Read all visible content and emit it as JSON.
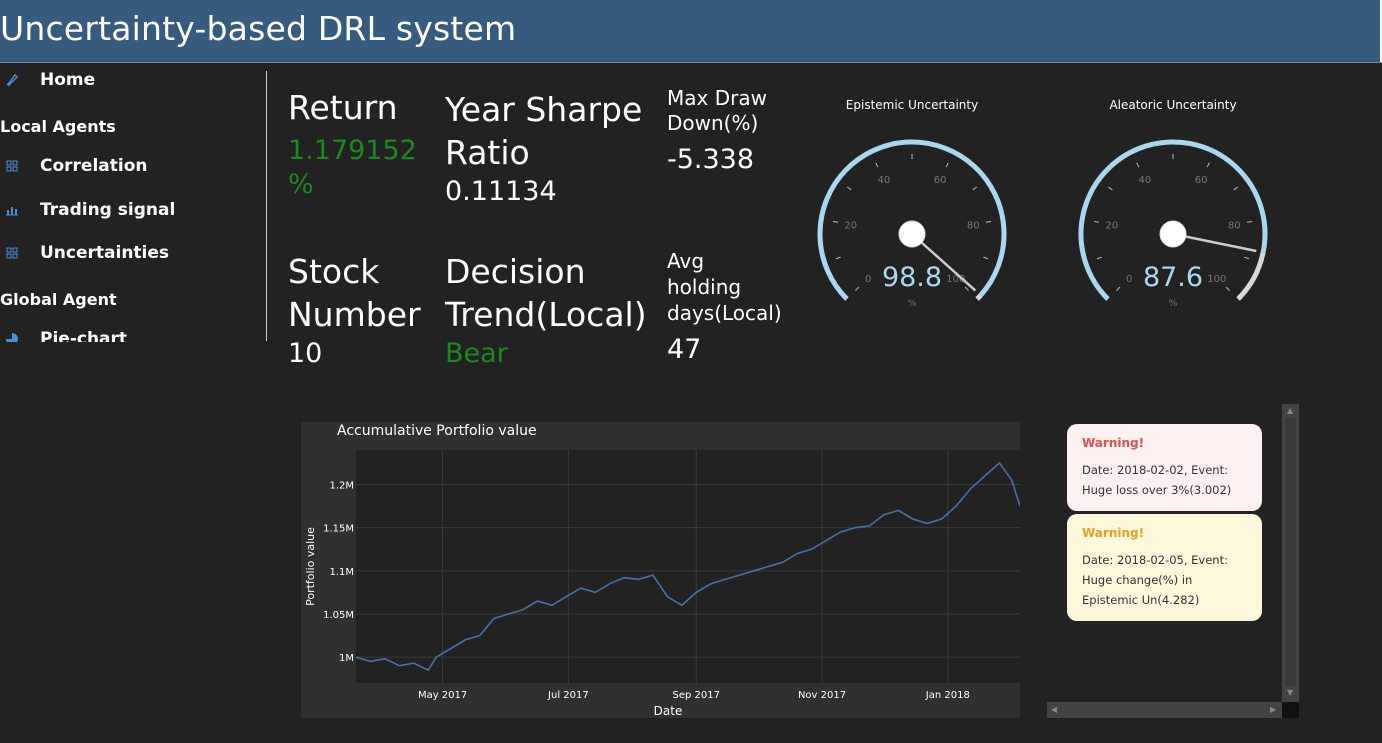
{
  "app": {
    "title": "Uncertainty-based DRL system"
  },
  "sidebar": {
    "home": "Home",
    "local_section": "Local Agents",
    "local_items": [
      "Correlation",
      "Trading signal",
      "Uncertainties"
    ],
    "global_section": "Global Agent",
    "global_items": [
      "Pie-chart"
    ]
  },
  "metrics": {
    "return": {
      "label": "Return",
      "value": "1.179152 %"
    },
    "sharpe": {
      "label": "Year Sharpe Ratio",
      "value": "0.11134"
    },
    "drawdown": {
      "label": "Max Draw Down(%)",
      "value": "-5.338"
    },
    "stock_number": {
      "label": "Stock Number",
      "value": "10"
    },
    "decision": {
      "label": "Decision Trend(Local)",
      "value": "Bear"
    },
    "holding": {
      "label": "Avg holding days(Local)",
      "value": "47"
    }
  },
  "gauges": [
    {
      "title": "Epistemic Uncertainty",
      "value": 98.8,
      "display": "98.8",
      "unit": "%",
      "min": 0,
      "max": 100,
      "ticks": [
        "0",
        "20",
        "40",
        "60",
        "80",
        "100"
      ]
    },
    {
      "title": "Aleatoric Uncertainty",
      "value": 87.6,
      "display": "87.6",
      "unit": "%",
      "min": 0,
      "max": 100,
      "ticks": [
        "0",
        "20",
        "40",
        "60",
        "80",
        "100"
      ]
    }
  ],
  "colors": {
    "header": "#375a7f",
    "green": "#1a8a1a",
    "gauge_arc": "#a8d8f0",
    "gauge_rest": "#d8d8d8",
    "line": "#4a6fa8",
    "warn_red": "#e05050",
    "warn_yellow": "#e8a020"
  },
  "chart_data": {
    "type": "line",
    "title": "Accumulative Portfolio value",
    "xlabel": "Date",
    "ylabel": "Portfolio value",
    "x_ticks": [
      "May 2017",
      "Jul 2017",
      "Sep 2017",
      "Nov 2017",
      "Jan 2018"
    ],
    "y_ticks": [
      "1M",
      "1.05M",
      "1.1M",
      "1.15M",
      "1.2M"
    ],
    "x_range": [
      "2017-03-20",
      "2018-02-05"
    ],
    "ylim": [
      970000,
      1240000
    ],
    "grid": true,
    "series": [
      {
        "points": [
          [
            "2017-03-20",
            1000000
          ],
          [
            "2017-03-27",
            995000
          ],
          [
            "2017-04-03",
            998000
          ],
          [
            "2017-04-10",
            990000
          ],
          [
            "2017-04-17",
            993000
          ],
          [
            "2017-04-24",
            985000
          ],
          [
            "2017-04-28",
            1000000
          ],
          [
            "2017-05-05",
            1010000
          ],
          [
            "2017-05-12",
            1020000
          ],
          [
            "2017-05-19",
            1025000
          ],
          [
            "2017-05-26",
            1045000
          ],
          [
            "2017-06-02",
            1050000
          ],
          [
            "2017-06-09",
            1055000
          ],
          [
            "2017-06-16",
            1065000
          ],
          [
            "2017-06-23",
            1060000
          ],
          [
            "2017-06-30",
            1070000
          ],
          [
            "2017-07-07",
            1080000
          ],
          [
            "2017-07-14",
            1075000
          ],
          [
            "2017-07-21",
            1085000
          ],
          [
            "2017-07-28",
            1092000
          ],
          [
            "2017-08-04",
            1090000
          ],
          [
            "2017-08-11",
            1095000
          ],
          [
            "2017-08-18",
            1070000
          ],
          [
            "2017-08-25",
            1060000
          ],
          [
            "2017-09-01",
            1075000
          ],
          [
            "2017-09-08",
            1085000
          ],
          [
            "2017-09-15",
            1090000
          ],
          [
            "2017-09-22",
            1095000
          ],
          [
            "2017-09-29",
            1100000
          ],
          [
            "2017-10-06",
            1105000
          ],
          [
            "2017-10-13",
            1110000
          ],
          [
            "2017-10-20",
            1120000
          ],
          [
            "2017-10-27",
            1125000
          ],
          [
            "2017-11-03",
            1135000
          ],
          [
            "2017-11-10",
            1145000
          ],
          [
            "2017-11-17",
            1150000
          ],
          [
            "2017-11-24",
            1152000
          ],
          [
            "2017-12-01",
            1165000
          ],
          [
            "2017-12-08",
            1170000
          ],
          [
            "2017-12-15",
            1160000
          ],
          [
            "2017-12-22",
            1155000
          ],
          [
            "2017-12-29",
            1160000
          ],
          [
            "2018-01-05",
            1175000
          ],
          [
            "2018-01-12",
            1195000
          ],
          [
            "2018-01-19",
            1210000
          ],
          [
            "2018-01-26",
            1225000
          ],
          [
            "2018-02-01",
            1205000
          ],
          [
            "2018-02-05",
            1175000
          ]
        ]
      }
    ]
  },
  "warnings": [
    {
      "heading": "Warning!",
      "body": "Date: 2018-02-02, Event: Huge loss over 3%(3.002)",
      "level": "danger"
    },
    {
      "heading": "Warning!",
      "body": "Date: 2018-02-05, Event: Huge change(%) in Epistemic Un(4.282)",
      "level": "warning"
    }
  ]
}
